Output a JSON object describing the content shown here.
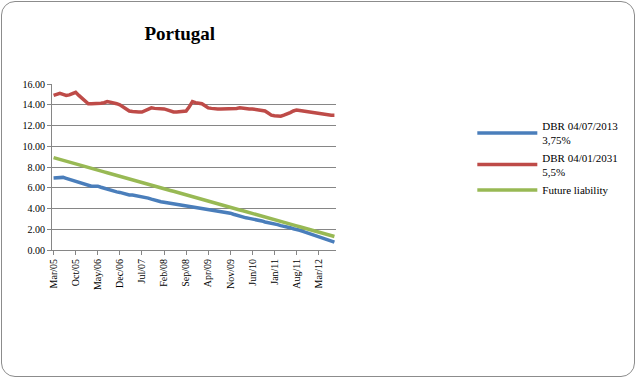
{
  "chart_data": {
    "type": "line",
    "title": "Portugal",
    "categories": [
      "Mar/05",
      null,
      null,
      null,
      null,
      null,
      null,
      "Oct/05",
      null,
      null,
      null,
      null,
      null,
      null,
      "May/06",
      null,
      null,
      null,
      null,
      null,
      null,
      "Dec/06",
      null,
      null,
      null,
      null,
      null,
      null,
      "Jul/07",
      null,
      null,
      null,
      null,
      null,
      null,
      "Feb/08",
      null,
      null,
      null,
      null,
      null,
      null,
      "Sep/08",
      null,
      null,
      null,
      null,
      null,
      null,
      "Apr/09",
      null,
      null,
      null,
      null,
      null,
      null,
      "Nov/09",
      null,
      null,
      null,
      null,
      null,
      null,
      "Jun/10",
      null,
      null,
      null,
      null,
      null,
      null,
      "Jan/11",
      null,
      null,
      null,
      null,
      null,
      null,
      "Aug/11",
      null,
      null,
      null,
      null,
      null,
      null,
      "Mar/12",
      null,
      null,
      null,
      null,
      null
    ],
    "series": [
      {
        "name": "DBR 04/07/2013 3,75%",
        "color": "#4a7ebb",
        "values": [
          6.95,
          6.98,
          7.0,
          7.0,
          6.9,
          6.8,
          6.7,
          6.6,
          6.5,
          6.4,
          6.3,
          6.2,
          6.15,
          6.15,
          6.15,
          6.05,
          5.95,
          5.85,
          5.8,
          5.7,
          5.6,
          5.55,
          5.45,
          5.35,
          5.3,
          5.3,
          5.25,
          5.15,
          5.1,
          5.05,
          5.0,
          4.9,
          4.8,
          4.7,
          4.65,
          4.6,
          4.55,
          4.55,
          4.5,
          4.45,
          4.4,
          4.35,
          4.3,
          4.25,
          4.2,
          4.15,
          4.1,
          4.05,
          3.95,
          3.9,
          3.85,
          3.8,
          3.75,
          3.7,
          3.65,
          3.6,
          3.55,
          3.45,
          3.35,
          3.25,
          3.15,
          3.1,
          3.05,
          3.0,
          2.95,
          2.85,
          2.8,
          2.7,
          2.65,
          2.55,
          2.5,
          2.45,
          2.35,
          2.3,
          2.2,
          2.15,
          2.05,
          2.0,
          1.9,
          1.8,
          1.7,
          1.6,
          1.5,
          1.4,
          1.3,
          1.2,
          1.05,
          0.95,
          0.85,
          0.75
        ]
      },
      {
        "name": "DBR 04/01/2031 5,5%",
        "color": "#be4b48",
        "values": [
          14.9,
          15.0,
          15.1,
          15.0,
          14.9,
          14.95,
          15.1,
          15.2,
          14.9,
          14.6,
          14.3,
          14.1,
          14.1,
          14.1,
          14.1,
          14.15,
          14.2,
          14.3,
          14.25,
          14.2,
          14.1,
          14.0,
          13.8,
          13.6,
          13.4,
          13.35,
          13.3,
          13.3,
          13.3,
          13.45,
          13.6,
          13.7,
          13.65,
          13.65,
          13.6,
          13.6,
          13.5,
          13.4,
          13.3,
          13.3,
          13.35,
          13.4,
          13.4,
          13.8,
          14.3,
          14.2,
          14.15,
          14.1,
          13.9,
          13.7,
          13.65,
          13.6,
          13.6,
          13.6,
          13.6,
          13.6,
          13.6,
          13.6,
          13.65,
          13.7,
          13.65,
          13.6,
          13.6,
          13.6,
          13.55,
          13.5,
          13.5,
          13.4,
          13.2,
          13.0,
          12.95,
          12.9,
          12.9,
          13.0,
          13.1,
          13.25,
          13.4,
          13.5,
          13.45,
          13.4,
          13.35,
          13.3,
          13.25,
          13.25,
          13.2,
          13.15,
          13.1,
          13.05,
          13.0,
          13.0
        ]
      },
      {
        "name": "Future liability",
        "color": "#98b954",
        "values": [
          8.9,
          8.81,
          8.73,
          8.64,
          8.56,
          8.47,
          8.39,
          8.3,
          8.22,
          8.13,
          8.05,
          7.96,
          7.88,
          7.79,
          7.7,
          7.62,
          7.53,
          7.45,
          7.36,
          7.28,
          7.19,
          7.11,
          7.02,
          6.94,
          6.85,
          6.77,
          6.68,
          6.59,
          6.51,
          6.42,
          6.34,
          6.25,
          6.17,
          6.08,
          6.0,
          5.91,
          5.83,
          5.74,
          5.66,
          5.57,
          5.48,
          5.4,
          5.31,
          5.23,
          5.14,
          5.06,
          4.97,
          4.89,
          4.8,
          4.72,
          4.63,
          4.55,
          4.46,
          4.37,
          4.29,
          4.2,
          4.12,
          4.03,
          3.95,
          3.86,
          3.78,
          3.69,
          3.61,
          3.52,
          3.44,
          3.35,
          3.26,
          3.18,
          3.09,
          3.01,
          2.92,
          2.84,
          2.75,
          2.67,
          2.58,
          2.5,
          2.41,
          2.33,
          2.24,
          2.15,
          2.07,
          1.98,
          1.9,
          1.81,
          1.73,
          1.64,
          1.56,
          1.47,
          1.39,
          1.3
        ]
      }
    ],
    "ylim": [
      0,
      16
    ],
    "yticks": [
      {
        "value": 0,
        "label": "0.00"
      },
      {
        "value": 2,
        "label": "2.00"
      },
      {
        "value": 4,
        "label": "4.00"
      },
      {
        "value": 6,
        "label": "6.00"
      },
      {
        "value": 8,
        "label": "8.00"
      },
      {
        "value": 10,
        "label": "10.00"
      },
      {
        "value": 12,
        "label": "12.00"
      },
      {
        "value": 14,
        "label": "14.00"
      },
      {
        "value": 16,
        "label": "16.00"
      }
    ],
    "grid": true,
    "legend": "right"
  }
}
